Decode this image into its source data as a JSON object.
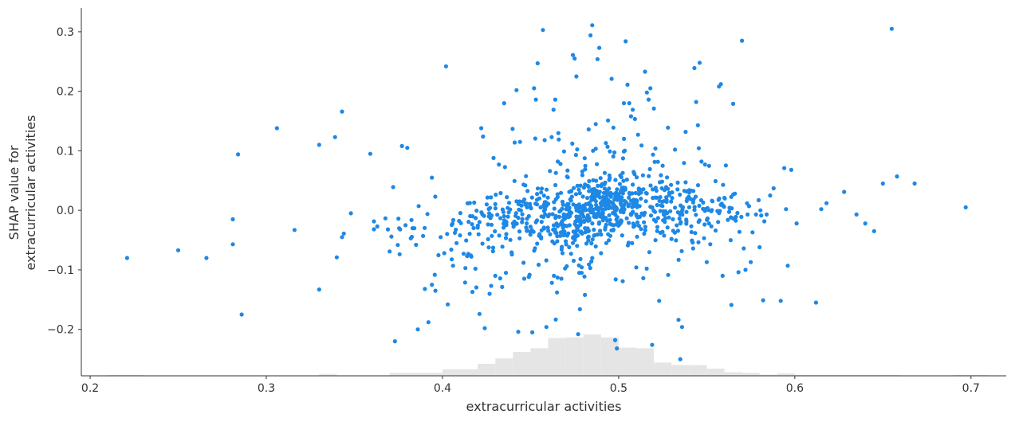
{
  "chart_data": {
    "type": "scatter",
    "title": "",
    "xlabel": "extracurricular activities",
    "ylabel_lines": [
      "SHAP value for",
      "extracurricular activities"
    ],
    "xlim": [
      0.195,
      0.72
    ],
    "ylim": [
      -0.278,
      0.34
    ],
    "xticks": [
      0.2,
      0.3,
      0.4,
      0.5,
      0.6,
      0.7
    ],
    "xtick_labels": [
      "0.2",
      "0.3",
      "0.4",
      "0.5",
      "0.6",
      "0.7"
    ],
    "yticks": [
      -0.2,
      -0.1,
      0.0,
      0.1,
      0.2,
      0.3
    ],
    "ytick_labels": [
      "−0.2",
      "−0.1",
      "0.0",
      "0.1",
      "0.2",
      "0.3"
    ],
    "grid": false,
    "point_color": "#1E88E5",
    "histogram_color": "#e5e5e5",
    "histogram": {
      "bins": [
        [
          0.21,
          0.23
        ],
        [
          0.23,
          0.33
        ],
        [
          0.33,
          0.34
        ],
        [
          0.34,
          0.37
        ],
        [
          0.37,
          0.4
        ],
        [
          0.4,
          0.42
        ],
        [
          0.42,
          0.43
        ],
        [
          0.43,
          0.44
        ],
        [
          0.44,
          0.45
        ],
        [
          0.45,
          0.46
        ],
        [
          0.46,
          0.47
        ],
        [
          0.47,
          0.48
        ],
        [
          0.48,
          0.49
        ],
        [
          0.49,
          0.5
        ],
        [
          0.5,
          0.51
        ],
        [
          0.51,
          0.52
        ],
        [
          0.52,
          0.53
        ],
        [
          0.53,
          0.54
        ],
        [
          0.54,
          0.55
        ],
        [
          0.55,
          0.56
        ],
        [
          0.56,
          0.57
        ],
        [
          0.57,
          0.58
        ],
        [
          0.58,
          0.59
        ],
        [
          0.59,
          0.6
        ],
        [
          0.6,
          0.65
        ],
        [
          0.65,
          0.66
        ],
        [
          0.66,
          0.69
        ],
        [
          0.69,
          0.71
        ]
      ],
      "counts": [
        1,
        0,
        3,
        0,
        5,
        11,
        20,
        29,
        40,
        46,
        63,
        64,
        69,
        64,
        47,
        46,
        22,
        18,
        18,
        12,
        6,
        5,
        2,
        4,
        1,
        1,
        0,
        1
      ]
    },
    "points": [
      [
        0.221,
        -0.08
      ],
      [
        0.25,
        -0.067
      ],
      [
        0.266,
        -0.08
      ],
      [
        0.281,
        -0.057
      ],
      [
        0.281,
        -0.015
      ],
      [
        0.284,
        0.094
      ],
      [
        0.286,
        -0.175
      ],
      [
        0.306,
        0.138
      ],
      [
        0.316,
        -0.033
      ],
      [
        0.33,
        0.11
      ],
      [
        0.33,
        -0.133
      ],
      [
        0.339,
        0.123
      ],
      [
        0.34,
        -0.079
      ],
      [
        0.343,
        0.166
      ],
      [
        0.343,
        -0.045
      ],
      [
        0.344,
        -0.039
      ],
      [
        0.348,
        -0.005
      ],
      [
        0.359,
        0.095
      ],
      [
        0.363,
        -0.027
      ],
      [
        0.369,
        -0.032
      ],
      [
        0.37,
        -0.069
      ],
      [
        0.371,
        -0.044
      ],
      [
        0.372,
        0.039
      ],
      [
        0.373,
        -0.22
      ],
      [
        0.375,
        -0.014
      ],
      [
        0.376,
        -0.032
      ],
      [
        0.377,
        0.108
      ],
      [
        0.379,
        -0.025
      ],
      [
        0.38,
        0.105
      ],
      [
        0.382,
        -0.047
      ],
      [
        0.383,
        -0.03
      ],
      [
        0.384,
        -0.03
      ],
      [
        0.385,
        -0.058
      ],
      [
        0.386,
        -0.2
      ],
      [
        0.389,
        -0.043
      ],
      [
        0.39,
        -0.132
      ],
      [
        0.392,
        -0.188
      ],
      [
        0.394,
        -0.125
      ],
      [
        0.394,
        0.055
      ],
      [
        0.396,
        -0.135
      ],
      [
        0.399,
        -0.045
      ],
      [
        0.401,
        -0.072
      ],
      [
        0.402,
        0.242
      ],
      [
        0.403,
        -0.158
      ],
      [
        0.405,
        -0.066
      ],
      [
        0.406,
        -0.093
      ],
      [
        0.408,
        -0.055
      ],
      [
        0.41,
        -0.042
      ],
      [
        0.412,
        -0.073
      ],
      [
        0.413,
        -0.097
      ],
      [
        0.414,
        -0.077
      ],
      [
        0.417,
        -0.137
      ],
      [
        0.418,
        0.013
      ],
      [
        0.42,
        -0.029
      ],
      [
        0.421,
        -0.174
      ],
      [
        0.422,
        0.138
      ],
      [
        0.423,
        0.124
      ],
      [
        0.424,
        -0.198
      ],
      [
        0.427,
        0.004
      ],
      [
        0.428,
        -0.043
      ],
      [
        0.429,
        0.088
      ],
      [
        0.43,
        -0.11
      ],
      [
        0.432,
        0.077
      ],
      [
        0.433,
        0.029
      ],
      [
        0.434,
        -0.061
      ],
      [
        0.435,
        0.18
      ],
      [
        0.436,
        -0.105
      ],
      [
        0.437,
        0.004
      ],
      [
        0.44,
        -0.022
      ],
      [
        0.441,
        0.114
      ],
      [
        0.442,
        0.202
      ],
      [
        0.443,
        -0.204
      ],
      [
        0.444,
        0.115
      ],
      [
        0.446,
        -0.088
      ],
      [
        0.447,
        0.042
      ],
      [
        0.448,
        -0.033
      ],
      [
        0.449,
        -0.112
      ],
      [
        0.45,
        0.005
      ],
      [
        0.451,
        -0.205
      ],
      [
        0.452,
        0.205
      ],
      [
        0.453,
        0.186
      ],
      [
        0.454,
        0.247
      ],
      [
        0.455,
        0.02
      ],
      [
        0.456,
        -0.045
      ],
      [
        0.457,
        0.303
      ],
      [
        0.458,
        0.118
      ],
      [
        0.459,
        -0.196
      ],
      [
        0.46,
        -0.01
      ],
      [
        0.461,
        0.066
      ],
      [
        0.462,
        0.123
      ],
      [
        0.463,
        0.169
      ],
      [
        0.464,
        0.186
      ],
      [
        0.465,
        -0.138
      ],
      [
        0.466,
        0.119
      ],
      [
        0.467,
        0.078
      ],
      [
        0.468,
        -0.018
      ],
      [
        0.469,
        0.099
      ],
      [
        0.47,
        -0.052
      ],
      [
        0.471,
        0.067
      ],
      [
        0.472,
        0.031
      ],
      [
        0.473,
        -0.073
      ],
      [
        0.474,
        0.261
      ],
      [
        0.475,
        0.255
      ],
      [
        0.476,
        0.225
      ],
      [
        0.477,
        -0.208
      ],
      [
        0.478,
        -0.166
      ],
      [
        0.479,
        -0.105
      ],
      [
        0.48,
        0.008
      ],
      [
        0.481,
        0.069
      ],
      [
        0.482,
        -0.013
      ],
      [
        0.483,
        0.136
      ],
      [
        0.484,
        0.294
      ],
      [
        0.485,
        0.311
      ],
      [
        0.486,
        -0.01
      ],
      [
        0.487,
        0.145
      ],
      [
        0.488,
        0.254
      ],
      [
        0.489,
        0.273
      ],
      [
        0.49,
        -0.072
      ],
      [
        0.491,
        0.016
      ],
      [
        0.492,
        0.044
      ],
      [
        0.493,
        -0.055
      ],
      [
        0.494,
        0.151
      ],
      [
        0.495,
        0.099
      ],
      [
        0.496,
        0.221
      ],
      [
        0.497,
        0.139
      ],
      [
        0.498,
        -0.218
      ],
      [
        0.499,
        -0.232
      ],
      [
        0.5,
        0.019
      ],
      [
        0.501,
        0.03
      ],
      [
        0.502,
        -0.042
      ],
      [
        0.503,
        0.18
      ],
      [
        0.504,
        0.284
      ],
      [
        0.505,
        0.211
      ],
      [
        0.506,
        0.18
      ],
      [
        0.507,
        0.158
      ],
      [
        0.508,
        0.169
      ],
      [
        0.509,
        0.061
      ],
      [
        0.51,
        -0.096
      ],
      [
        0.511,
        0.127
      ],
      [
        0.512,
        -0.011
      ],
      [
        0.513,
        0.109
      ],
      [
        0.514,
        -0.114
      ],
      [
        0.515,
        0.233
      ],
      [
        0.516,
        0.198
      ],
      [
        0.517,
        0.186
      ],
      [
        0.518,
        0.205
      ],
      [
        0.519,
        -0.226
      ],
      [
        0.52,
        0.171
      ],
      [
        0.521,
        0.038
      ],
      [
        0.522,
        -0.028
      ],
      [
        0.523,
        -0.152
      ],
      [
        0.524,
        0.059
      ],
      [
        0.525,
        0.075
      ],
      [
        0.527,
        0.022
      ],
      [
        0.528,
        0.139
      ],
      [
        0.53,
        -0.048
      ],
      [
        0.532,
        0.102
      ],
      [
        0.534,
        -0.184
      ],
      [
        0.535,
        -0.25
      ],
      [
        0.536,
        -0.196
      ],
      [
        0.538,
        0.047
      ],
      [
        0.54,
        0.034
      ],
      [
        0.542,
        -0.054
      ],
      [
        0.543,
        0.239
      ],
      [
        0.544,
        0.182
      ],
      [
        0.545,
        0.143
      ],
      [
        0.546,
        0.248
      ],
      [
        0.547,
        0.082
      ],
      [
        0.549,
        0.077
      ],
      [
        0.55,
        -0.087
      ],
      [
        0.552,
        -0.057
      ],
      [
        0.555,
        0.049
      ],
      [
        0.557,
        0.208
      ],
      [
        0.558,
        0.212
      ],
      [
        0.559,
        -0.11
      ],
      [
        0.56,
        0.021
      ],
      [
        0.562,
        -0.016
      ],
      [
        0.564,
        -0.159
      ],
      [
        0.565,
        0.179
      ],
      [
        0.566,
        0.028
      ],
      [
        0.568,
        -0.104
      ],
      [
        0.57,
        0.285
      ],
      [
        0.571,
        -0.064
      ],
      [
        0.572,
        -0.1
      ],
      [
        0.574,
        0.007
      ],
      [
        0.575,
        -0.087
      ],
      [
        0.576,
        -0.037
      ],
      [
        0.578,
        -0.007
      ],
      [
        0.58,
        -0.062
      ],
      [
        0.582,
        -0.151
      ],
      [
        0.584,
        -0.007
      ],
      [
        0.586,
        0.025
      ],
      [
        0.588,
        0.037
      ],
      [
        0.592,
        -0.152
      ],
      [
        0.594,
        0.071
      ],
      [
        0.595,
        0.002
      ],
      [
        0.596,
        -0.093
      ],
      [
        0.598,
        0.068
      ],
      [
        0.601,
        -0.022
      ],
      [
        0.612,
        -0.155
      ],
      [
        0.615,
        0.002
      ],
      [
        0.618,
        0.012
      ],
      [
        0.628,
        0.031
      ],
      [
        0.635,
        -0.007
      ],
      [
        0.64,
        -0.022
      ],
      [
        0.645,
        -0.035
      ],
      [
        0.65,
        0.045
      ],
      [
        0.655,
        0.305
      ],
      [
        0.658,
        0.057
      ],
      [
        0.668,
        0.045
      ],
      [
        0.697,
        0.005
      ]
    ],
    "dense_clusters": [
      {
        "cx": 0.43,
        "cy": -0.015,
        "sx": 0.012,
        "sy": 0.018,
        "n": 45
      },
      {
        "cx": 0.455,
        "cy": -0.005,
        "sx": 0.012,
        "sy": 0.025,
        "n": 90
      },
      {
        "cx": 0.478,
        "cy": -0.015,
        "sx": 0.01,
        "sy": 0.022,
        "n": 120
      },
      {
        "cx": 0.492,
        "cy": 0.012,
        "sx": 0.01,
        "sy": 0.02,
        "n": 150
      },
      {
        "cx": 0.51,
        "cy": 0.005,
        "sx": 0.012,
        "sy": 0.022,
        "n": 110
      },
      {
        "cx": 0.535,
        "cy": -0.008,
        "sx": 0.012,
        "sy": 0.025,
        "n": 80
      },
      {
        "cx": 0.56,
        "cy": 0.0,
        "sx": 0.012,
        "sy": 0.02,
        "n": 40
      },
      {
        "cx": 0.47,
        "cy": -0.055,
        "sx": 0.03,
        "sy": 0.045,
        "n": 90
      },
      {
        "cx": 0.49,
        "cy": 0.06,
        "sx": 0.03,
        "sy": 0.04,
        "n": 70
      },
      {
        "cx": 0.4,
        "cy": -0.03,
        "sx": 0.02,
        "sy": 0.03,
        "n": 30
      }
    ]
  }
}
